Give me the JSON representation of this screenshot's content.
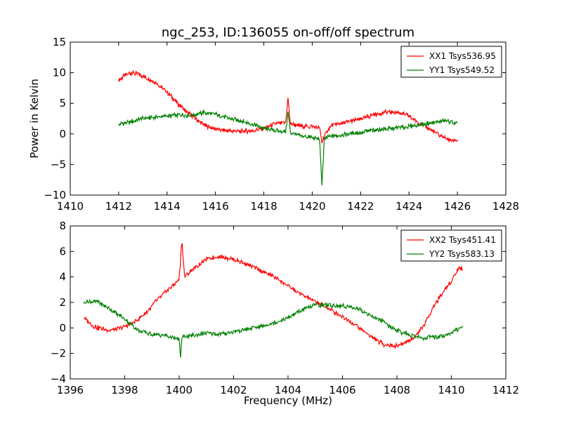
{
  "chart_data": [
    {
      "type": "line",
      "title": "ngc_253, ID:136055 on-off/off spectrum",
      "xlabel": "",
      "ylabel": "Power in Kelvin",
      "xlim": [
        1410,
        1428
      ],
      "ylim": [
        -10,
        15
      ],
      "xticks": [
        "1410",
        "1412",
        "1414",
        "1416",
        "1418",
        "1420",
        "1422",
        "1424",
        "1426",
        "1428"
      ],
      "yticks": [
        "15",
        "10",
        "5",
        "0",
        "−5",
        "−10"
      ],
      "legend_position": "top-right",
      "grid": false,
      "series": [
        {
          "name": "XX1 Tsys536.95",
          "color": "#ff0000",
          "points": [
            [
              1412.0,
              8.7
            ],
            [
              1412.2,
              9.4
            ],
            [
              1412.5,
              10.0
            ],
            [
              1412.8,
              9.8
            ],
            [
              1413.0,
              9.4
            ],
            [
              1413.3,
              8.9
            ],
            [
              1413.6,
              8.2
            ],
            [
              1414.0,
              6.8
            ],
            [
              1414.4,
              5.1
            ],
            [
              1414.8,
              3.6
            ],
            [
              1415.2,
              2.4
            ],
            [
              1415.6,
              1.3
            ],
            [
              1416.0,
              0.8
            ],
            [
              1416.5,
              0.5
            ],
            [
              1417.0,
              0.4
            ],
            [
              1417.5,
              0.5
            ],
            [
              1418.0,
              0.9
            ],
            [
              1418.5,
              1.7
            ],
            [
              1418.9,
              1.8
            ],
            [
              1419.0,
              5.8
            ],
            [
              1419.1,
              1.6
            ],
            [
              1419.5,
              1.3
            ],
            [
              1420.0,
              1.2
            ],
            [
              1420.3,
              1.0
            ],
            [
              1420.4,
              -1.3
            ],
            [
              1420.5,
              -0.2
            ],
            [
              1420.8,
              1.4
            ],
            [
              1421.5,
              2.0
            ],
            [
              1422.0,
              2.4
            ],
            [
              1422.5,
              3.1
            ],
            [
              1423.0,
              3.5
            ],
            [
              1423.5,
              3.6
            ],
            [
              1423.8,
              3.2
            ],
            [
              1424.2,
              2.4
            ],
            [
              1424.6,
              1.4
            ],
            [
              1425.0,
              0.4
            ],
            [
              1425.3,
              -0.3
            ],
            [
              1425.6,
              -0.9
            ],
            [
              1426.0,
              -1.2
            ]
          ]
        },
        {
          "name": "YY1 Tsys549.52",
          "color": "#008000",
          "points": [
            [
              1412.0,
              1.5
            ],
            [
              1412.5,
              2.0
            ],
            [
              1413.0,
              2.5
            ],
            [
              1413.5,
              2.7
            ],
            [
              1414.0,
              2.9
            ],
            [
              1414.5,
              3.1
            ],
            [
              1415.0,
              3.0
            ],
            [
              1415.5,
              3.5
            ],
            [
              1416.0,
              3.2
            ],
            [
              1416.5,
              2.6
            ],
            [
              1417.0,
              2.2
            ],
            [
              1417.5,
              1.6
            ],
            [
              1418.0,
              0.9
            ],
            [
              1418.5,
              0.5
            ],
            [
              1418.9,
              0.3
            ],
            [
              1419.0,
              3.5
            ],
            [
              1419.1,
              0.2
            ],
            [
              1419.5,
              -0.3
            ],
            [
              1420.0,
              -0.6
            ],
            [
              1420.3,
              -0.8
            ],
            [
              1420.4,
              -8.3
            ],
            [
              1420.5,
              -1.0
            ],
            [
              1420.7,
              -0.4
            ],
            [
              1421.0,
              -0.3
            ],
            [
              1421.5,
              0.0
            ],
            [
              1422.0,
              0.2
            ],
            [
              1422.5,
              0.6
            ],
            [
              1423.0,
              0.8
            ],
            [
              1423.5,
              1.0
            ],
            [
              1424.0,
              1.2
            ],
            [
              1424.5,
              1.5
            ],
            [
              1425.0,
              1.8
            ],
            [
              1425.5,
              2.2
            ],
            [
              1426.0,
              1.6
            ]
          ]
        }
      ]
    },
    {
      "type": "line",
      "title": "",
      "xlabel": "Frequency (MHz)",
      "ylabel": "",
      "xlim": [
        1396,
        1412
      ],
      "ylim": [
        -4,
        8
      ],
      "xticks": [
        "1396",
        "1398",
        "1400",
        "1402",
        "1404",
        "1406",
        "1408",
        "1410",
        "1412"
      ],
      "yticks": [
        "8",
        "6",
        "4",
        "2",
        "0",
        "−2",
        "−4"
      ],
      "legend_position": "top-right",
      "grid": false,
      "series": [
        {
          "name": "XX2 Tsys451.41",
          "color": "#ff0000",
          "points": [
            [
              1396.5,
              0.8
            ],
            [
              1396.8,
              0.2
            ],
            [
              1397.0,
              0.0
            ],
            [
              1397.5,
              -0.2
            ],
            [
              1398.0,
              0.1
            ],
            [
              1398.4,
              0.5
            ],
            [
              1398.8,
              1.2
            ],
            [
              1399.2,
              2.2
            ],
            [
              1399.6,
              3.0
            ],
            [
              1400.0,
              3.8
            ],
            [
              1400.1,
              6.9
            ],
            [
              1400.2,
              4.0
            ],
            [
              1400.5,
              4.6
            ],
            [
              1401.0,
              5.4
            ],
            [
              1401.5,
              5.6
            ],
            [
              1402.0,
              5.4
            ],
            [
              1402.5,
              5.0
            ],
            [
              1403.0,
              4.5
            ],
            [
              1403.5,
              4.0
            ],
            [
              1404.0,
              3.3
            ],
            [
              1404.5,
              2.6
            ],
            [
              1405.0,
              2.1
            ],
            [
              1405.5,
              1.5
            ],
            [
              1406.0,
              0.9
            ],
            [
              1406.5,
              0.2
            ],
            [
              1407.0,
              -0.6
            ],
            [
              1407.5,
              -1.3
            ],
            [
              1408.0,
              -1.4
            ],
            [
              1408.5,
              -1.0
            ],
            [
              1409.0,
              0.2
            ],
            [
              1409.3,
              1.5
            ],
            [
              1409.6,
              2.5
            ],
            [
              1410.0,
              3.7
            ],
            [
              1410.3,
              4.8
            ],
            [
              1410.4,
              4.6
            ]
          ]
        },
        {
          "name": "YY2 Tsys583.13",
          "color": "#008000",
          "points": [
            [
              1396.5,
              2.0
            ],
            [
              1397.0,
              2.1
            ],
            [
              1397.5,
              1.4
            ],
            [
              1398.0,
              0.7
            ],
            [
              1398.5,
              -0.2
            ],
            [
              1399.0,
              -0.5
            ],
            [
              1399.5,
              -0.6
            ],
            [
              1400.0,
              -0.9
            ],
            [
              1400.05,
              -2.4
            ],
            [
              1400.1,
              -0.7
            ],
            [
              1400.5,
              -0.6
            ],
            [
              1401.0,
              -0.4
            ],
            [
              1401.5,
              -0.5
            ],
            [
              1402.0,
              -0.3
            ],
            [
              1402.5,
              -0.1
            ],
            [
              1403.0,
              0.1
            ],
            [
              1403.5,
              0.4
            ],
            [
              1404.0,
              0.8
            ],
            [
              1404.5,
              1.4
            ],
            [
              1405.0,
              1.8
            ],
            [
              1405.5,
              1.8
            ],
            [
              1406.0,
              1.7
            ],
            [
              1406.5,
              1.6
            ],
            [
              1407.0,
              1.0
            ],
            [
              1407.5,
              0.5
            ],
            [
              1408.0,
              -0.2
            ],
            [
              1408.5,
              -0.6
            ],
            [
              1409.0,
              -0.8
            ],
            [
              1409.5,
              -0.7
            ],
            [
              1410.0,
              -0.4
            ],
            [
              1410.4,
              0.1
            ]
          ]
        }
      ]
    }
  ]
}
